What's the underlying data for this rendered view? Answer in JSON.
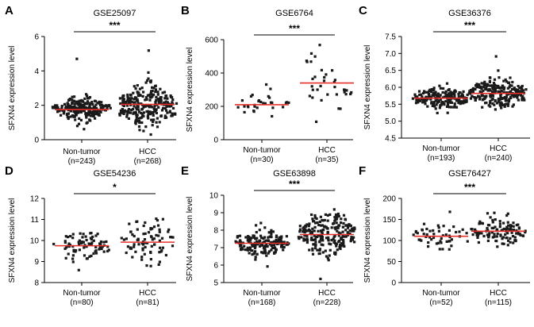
{
  "figure": {
    "ylabel": "SFXN4 expression level",
    "marker_color": "#1a1a1a",
    "median_color": "#e8302a"
  },
  "chart_data": [
    {
      "type": "scatter",
      "panel": "A",
      "title": "GSE25097",
      "ylabel": "SFXN4 expression level",
      "ylim": [
        0,
        6
      ],
      "yticks": [
        "0",
        "2",
        "4",
        "6"
      ],
      "categories": [
        "Non-tumor",
        "HCC"
      ],
      "series": [
        {
          "name": "Non-tumor",
          "n_label": "(n=243)",
          "n": 243,
          "median": 1.75,
          "spread": 0.3,
          "min": 0.6,
          "max": 4.7
        },
        {
          "name": "HCC",
          "n_label": "(n=268)",
          "n": 268,
          "median": 2.05,
          "spread": 0.6,
          "min": 0.3,
          "max": 5.2
        }
      ],
      "significance": "***"
    },
    {
      "type": "scatter",
      "panel": "B",
      "title": "GSE6764",
      "ylabel": "SFXN4 expression level",
      "ylim": [
        0,
        600
      ],
      "yticks": [
        "0",
        "200",
        "400",
        "600"
      ],
      "categories": [
        "Non-tumor",
        "HCC"
      ],
      "series": [
        {
          "name": "Non-tumor",
          "n_label": "(n=30)",
          "n": 30,
          "median": 210,
          "spread": 40,
          "min": 140,
          "max": 330
        },
        {
          "name": "HCC",
          "n_label": "(n=35)",
          "n": 35,
          "median": 340,
          "spread": 95,
          "min": 110,
          "max": 570
        }
      ],
      "significance": "***"
    },
    {
      "type": "scatter",
      "panel": "C",
      "title": "GSE36376",
      "ylabel": "SFXN4 expression level",
      "ylim": [
        4.5,
        7.5
      ],
      "yticks": [
        "4.5",
        "5.0",
        "5.5",
        "6.0",
        "6.5",
        "7.0",
        "7.5"
      ],
      "categories": [
        "Non-tumor",
        "HCC"
      ],
      "series": [
        {
          "name": "Non-tumor",
          "n_label": "(n=193)",
          "n": 193,
          "median": 5.68,
          "spread": 0.14,
          "min": 5.25,
          "max": 6.1
        },
        {
          "name": "HCC",
          "n_label": "(n=240)",
          "n": 240,
          "median": 5.82,
          "spread": 0.2,
          "min": 5.35,
          "max": 6.9
        }
      ],
      "significance": "***"
    },
    {
      "type": "scatter",
      "panel": "D",
      "title": "GSE54236",
      "ylabel": "SFXN4 expression level",
      "ylim": [
        8,
        12
      ],
      "yticks": [
        "8",
        "9",
        "10",
        "11",
        "12"
      ],
      "categories": [
        "Non-tumor",
        "HCC"
      ],
      "series": [
        {
          "name": "Non-tumor",
          "n_label": "(n=80)",
          "n": 80,
          "median": 9.75,
          "spread": 0.38,
          "min": 8.6,
          "max": 10.35
        },
        {
          "name": "HCC",
          "n_label": "(n=81)",
          "n": 81,
          "median": 9.92,
          "spread": 0.45,
          "min": 8.8,
          "max": 11.05
        }
      ],
      "significance": "*"
    },
    {
      "type": "scatter",
      "panel": "E",
      "title": "GSE63898",
      "ylabel": "SFXN4 expression level",
      "ylim": [
        5,
        10
      ],
      "yticks": [
        "5",
        "6",
        "7",
        "8",
        "9",
        "10"
      ],
      "categories": [
        "Non-tumor",
        "HCC"
      ],
      "series": [
        {
          "name": "Non-tumor",
          "n_label": "(n=168)",
          "n": 168,
          "median": 7.25,
          "spread": 0.4,
          "min": 5.9,
          "max": 8.4
        },
        {
          "name": "HCC",
          "n_label": "(n=228)",
          "n": 228,
          "median": 7.75,
          "spread": 0.6,
          "min": 5.2,
          "max": 9.2
        }
      ],
      "significance": "***"
    },
    {
      "type": "scatter",
      "panel": "F",
      "title": "GSE76427",
      "ylabel": "SFXN4 expression level",
      "ylim": [
        0,
        200
      ],
      "yticks": [
        "0",
        "50",
        "100",
        "150",
        "200"
      ],
      "categories": [
        "Non-tumor",
        "HCC"
      ],
      "series": [
        {
          "name": "Non-tumor",
          "n_label": "(n=52)",
          "n": 52,
          "median": 110,
          "spread": 14,
          "min": 78,
          "max": 168
        },
        {
          "name": "HCC",
          "n_label": "(n=115)",
          "n": 115,
          "median": 122,
          "spread": 16,
          "min": 85,
          "max": 165
        }
      ],
      "significance": "***"
    }
  ]
}
